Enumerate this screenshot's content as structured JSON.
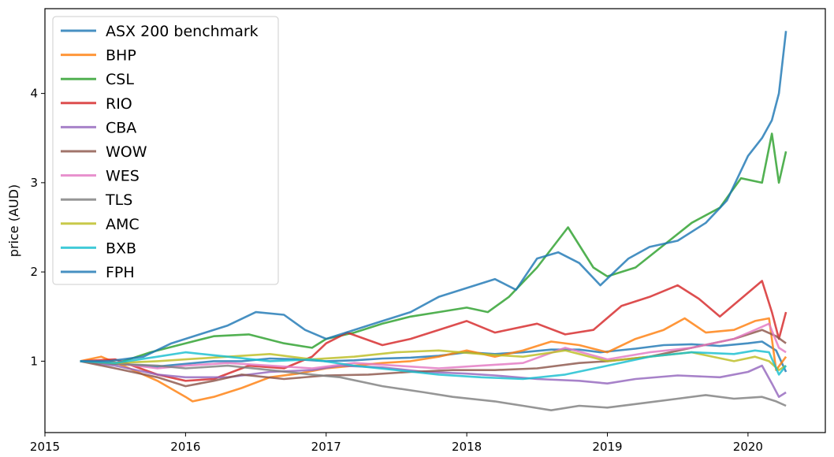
{
  "chart_data": {
    "type": "line",
    "title": "",
    "xlabel": "",
    "ylabel": "price (AUD)",
    "xlim": [
      2015.0,
      2020.55
    ],
    "ylim": [
      0.2,
      4.95
    ],
    "xticks": [
      2015,
      2016,
      2017,
      2018,
      2019,
      2020
    ],
    "xtick_labels": [
      "2015",
      "2016",
      "2017",
      "2018",
      "2019",
      "2020"
    ],
    "yticks": [
      1,
      2,
      3,
      4
    ],
    "ytick_labels": [
      "1",
      "2",
      "3",
      "4"
    ],
    "grid": false,
    "legend_position": "top-left",
    "series": [
      {
        "name": "ASX 200 benchmark",
        "color": "#1f77b4",
        "x": [
          2015.25,
          2015.4,
          2015.6,
          2015.8,
          2016.0,
          2016.2,
          2016.4,
          2016.6,
          2016.8,
          2017.0,
          2017.2,
          2017.4,
          2017.6,
          2017.8,
          2018.0,
          2018.2,
          2018.4,
          2018.6,
          2018.8,
          2018.95,
          2019.2,
          2019.4,
          2019.6,
          2019.8,
          2020.0,
          2020.1,
          2020.2,
          2020.27
        ],
        "y": [
          1.0,
          0.98,
          0.96,
          0.94,
          0.97,
          1.0,
          1.0,
          1.03,
          1.02,
          1.0,
          1.01,
          1.03,
          1.04,
          1.06,
          1.1,
          1.08,
          1.1,
          1.13,
          1.13,
          1.1,
          1.14,
          1.18,
          1.19,
          1.17,
          1.2,
          1.22,
          1.12,
          0.88
        ]
      },
      {
        "name": "BHP",
        "color": "#ff7f0e",
        "x": [
          2015.25,
          2015.4,
          2015.6,
          2015.8,
          2016.0,
          2016.05,
          2016.2,
          2016.4,
          2016.6,
          2016.8,
          2017.0,
          2017.2,
          2017.4,
          2017.6,
          2017.8,
          2018.0,
          2018.2,
          2018.4,
          2018.6,
          2018.8,
          2019.0,
          2019.2,
          2019.4,
          2019.55,
          2019.7,
          2019.9,
          2020.05,
          2020.15,
          2020.2,
          2020.27
        ],
        "y": [
          1.0,
          1.05,
          0.92,
          0.78,
          0.6,
          0.55,
          0.6,
          0.7,
          0.82,
          0.86,
          0.92,
          0.95,
          0.98,
          1.0,
          1.05,
          1.12,
          1.05,
          1.12,
          1.22,
          1.18,
          1.1,
          1.25,
          1.35,
          1.48,
          1.32,
          1.35,
          1.45,
          1.48,
          0.9,
          1.05
        ]
      },
      {
        "name": "CSL",
        "color": "#2ca02c",
        "x": [
          2015.25,
          2015.5,
          2015.75,
          2016.0,
          2016.2,
          2016.45,
          2016.7,
          2016.9,
          2017.0,
          2017.2,
          2017.4,
          2017.6,
          2017.8,
          2018.0,
          2018.15,
          2018.3,
          2018.5,
          2018.72,
          2018.9,
          2019.0,
          2019.2,
          2019.4,
          2019.6,
          2019.8,
          2019.95,
          2020.1,
          2020.17,
          2020.22,
          2020.27
        ],
        "y": [
          1.0,
          0.97,
          1.1,
          1.2,
          1.28,
          1.3,
          1.2,
          1.15,
          1.25,
          1.32,
          1.42,
          1.5,
          1.55,
          1.6,
          1.55,
          1.72,
          2.05,
          2.5,
          2.05,
          1.95,
          2.05,
          2.3,
          2.55,
          2.72,
          3.05,
          3.0,
          3.55,
          3.0,
          3.35
        ]
      },
      {
        "name": "RIO",
        "color": "#d62728",
        "x": [
          2015.25,
          2015.5,
          2015.8,
          2016.0,
          2016.2,
          2016.45,
          2016.7,
          2016.9,
          2017.0,
          2017.15,
          2017.4,
          2017.6,
          2017.8,
          2018.0,
          2018.2,
          2018.5,
          2018.7,
          2018.9,
          2019.1,
          2019.3,
          2019.5,
          2019.65,
          2019.8,
          2019.95,
          2020.1,
          2020.17,
          2020.22,
          2020.27
        ],
        "y": [
          1.0,
          1.02,
          0.85,
          0.78,
          0.8,
          0.95,
          0.92,
          1.05,
          1.2,
          1.32,
          1.18,
          1.25,
          1.35,
          1.45,
          1.32,
          1.42,
          1.3,
          1.35,
          1.62,
          1.72,
          1.85,
          1.7,
          1.5,
          1.7,
          1.9,
          1.55,
          1.25,
          1.55
        ]
      },
      {
        "name": "CBA",
        "color": "#9467bd",
        "x": [
          2015.25,
          2015.5,
          2015.8,
          2016.0,
          2016.3,
          2016.6,
          2016.9,
          2017.1,
          2017.4,
          2017.7,
          2018.0,
          2018.2,
          2018.5,
          2018.8,
          2019.0,
          2019.2,
          2019.5,
          2019.8,
          2020.0,
          2020.1,
          2020.17,
          2020.22,
          2020.27
        ],
        "y": [
          1.0,
          0.95,
          0.85,
          0.82,
          0.82,
          0.88,
          0.9,
          0.95,
          0.93,
          0.88,
          0.86,
          0.84,
          0.8,
          0.78,
          0.75,
          0.8,
          0.84,
          0.82,
          0.88,
          0.95,
          0.75,
          0.6,
          0.65
        ]
      },
      {
        "name": "WOW",
        "color": "#8c564b",
        "x": [
          2015.25,
          2015.5,
          2015.8,
          2016.0,
          2016.2,
          2016.4,
          2016.7,
          2017.0,
          2017.3,
          2017.6,
          2017.9,
          2018.2,
          2018.5,
          2018.8,
          2019.0,
          2019.3,
          2019.6,
          2019.9,
          2020.1,
          2020.2,
          2020.27
        ],
        "y": [
          1.0,
          0.92,
          0.82,
          0.72,
          0.78,
          0.85,
          0.8,
          0.84,
          0.85,
          0.88,
          0.9,
          0.9,
          0.92,
          0.98,
          1.0,
          1.05,
          1.15,
          1.25,
          1.35,
          1.28,
          1.2
        ]
      },
      {
        "name": "WES",
        "color": "#e377c2",
        "x": [
          2015.25,
          2015.5,
          2015.8,
          2016.0,
          2016.3,
          2016.6,
          2016.9,
          2017.2,
          2017.5,
          2017.8,
          2018.1,
          2018.4,
          2018.7,
          2019.0,
          2019.3,
          2019.6,
          2019.9,
          2020.05,
          2020.15,
          2020.22,
          2020.27
        ],
        "y": [
          1.0,
          0.98,
          0.92,
          0.95,
          0.98,
          0.95,
          0.92,
          0.98,
          0.95,
          0.92,
          0.95,
          0.98,
          1.15,
          1.02,
          1.1,
          1.15,
          1.25,
          1.35,
          1.42,
          1.15,
          1.1
        ]
      },
      {
        "name": "TLS",
        "color": "#7f7f7f",
        "x": [
          2015.25,
          2015.5,
          2015.8,
          2016.0,
          2016.3,
          2016.6,
          2016.9,
          2017.1,
          2017.4,
          2017.7,
          2017.9,
          2018.2,
          2018.4,
          2018.6,
          2018.8,
          2019.0,
          2019.2,
          2019.5,
          2019.7,
          2019.9,
          2020.1,
          2020.2,
          2020.27
        ],
        "y": [
          1.0,
          0.97,
          0.95,
          0.92,
          0.95,
          0.9,
          0.85,
          0.82,
          0.72,
          0.65,
          0.6,
          0.55,
          0.5,
          0.45,
          0.5,
          0.48,
          0.52,
          0.58,
          0.62,
          0.58,
          0.6,
          0.55,
          0.5
        ]
      },
      {
        "name": "AMC",
        "color": "#bcbd22",
        "x": [
          2015.25,
          2015.5,
          2015.8,
          2016.0,
          2016.3,
          2016.6,
          2016.9,
          2017.2,
          2017.5,
          2017.8,
          2018.1,
          2018.4,
          2018.7,
          2019.0,
          2019.3,
          2019.6,
          2019.9,
          2020.05,
          2020.15,
          2020.22,
          2020.27
        ],
        "y": [
          1.0,
          0.98,
          1.0,
          1.02,
          1.05,
          1.08,
          1.02,
          1.05,
          1.1,
          1.12,
          1.08,
          1.05,
          1.12,
          1.0,
          1.05,
          1.1,
          1.0,
          1.05,
          1.0,
          0.9,
          0.95
        ]
      },
      {
        "name": "BXB",
        "color": "#17becf",
        "x": [
          2015.25,
          2015.5,
          2015.8,
          2016.0,
          2016.3,
          2016.6,
          2016.9,
          2017.2,
          2017.5,
          2017.8,
          2018.1,
          2018.4,
          2018.7,
          2019.0,
          2019.3,
          2019.6,
          2019.9,
          2020.05,
          2020.15,
          2020.22,
          2020.27
        ],
        "y": [
          1.0,
          0.98,
          1.05,
          1.1,
          1.05,
          1.0,
          1.02,
          0.95,
          0.9,
          0.85,
          0.82,
          0.8,
          0.85,
          0.95,
          1.05,
          1.1,
          1.08,
          1.12,
          1.1,
          0.85,
          0.95
        ]
      },
      {
        "name": "FPH",
        "color": "#1f77b4",
        "x": [
          2015.25,
          2015.45,
          2015.7,
          2015.9,
          2016.1,
          2016.3,
          2016.5,
          2016.7,
          2016.85,
          2017.0,
          2017.2,
          2017.4,
          2017.6,
          2017.8,
          2018.0,
          2018.2,
          2018.35,
          2018.5,
          2018.65,
          2018.8,
          2018.95,
          2019.15,
          2019.3,
          2019.5,
          2019.7,
          2019.85,
          2020.0,
          2020.1,
          2020.17,
          2020.22,
          2020.27
        ],
        "y": [
          1.0,
          1.0,
          1.05,
          1.2,
          1.3,
          1.4,
          1.55,
          1.52,
          1.35,
          1.25,
          1.35,
          1.45,
          1.55,
          1.72,
          1.82,
          1.92,
          1.8,
          2.15,
          2.22,
          2.1,
          1.85,
          2.15,
          2.28,
          2.35,
          2.55,
          2.8,
          3.3,
          3.5,
          3.7,
          4.0,
          4.7
        ]
      }
    ]
  }
}
